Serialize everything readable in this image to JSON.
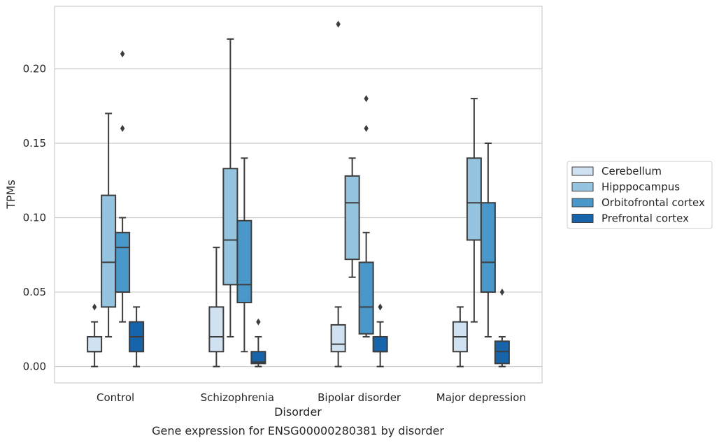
{
  "chart_data": {
    "type": "boxplot",
    "title": "Gene expression for ENSG00000280381 by disorder",
    "xlabel": "Disorder",
    "ylabel": "TPMs",
    "ylim": [
      -0.011,
      0.242
    ],
    "yticks": [
      0.0,
      0.05,
      0.1,
      0.15,
      0.2
    ],
    "ytick_labels": [
      "0.00",
      "0.05",
      "0.10",
      "0.15",
      "0.20"
    ],
    "grid": "horizontal",
    "legend_position": "right",
    "categories": [
      "Control",
      "Schizophrenia",
      "Bipolar disorder",
      "Major depression"
    ],
    "series": [
      {
        "name": "Cerebellum",
        "color": "#d0e1f2",
        "boxes": [
          {
            "whislo": 0.0,
            "q1": 0.01,
            "med": 0.01,
            "q3": 0.02,
            "whishi": 0.03,
            "fliers": [
              0.04
            ]
          },
          {
            "whislo": 0.0,
            "q1": 0.01,
            "med": 0.02,
            "q3": 0.04,
            "whishi": 0.08,
            "fliers": []
          },
          {
            "whislo": 0.0,
            "q1": 0.01,
            "med": 0.015,
            "q3": 0.028,
            "whishi": 0.04,
            "fliers": [
              0.23
            ]
          },
          {
            "whislo": 0.0,
            "q1": 0.01,
            "med": 0.02,
            "q3": 0.03,
            "whishi": 0.04,
            "fliers": []
          }
        ]
      },
      {
        "name": "Hipppocampus",
        "color": "#94c4df",
        "boxes": [
          {
            "whislo": 0.02,
            "q1": 0.04,
            "med": 0.07,
            "q3": 0.115,
            "whishi": 0.17,
            "fliers": []
          },
          {
            "whislo": 0.02,
            "q1": 0.055,
            "med": 0.085,
            "q3": 0.133,
            "whishi": 0.22,
            "fliers": []
          },
          {
            "whislo": 0.06,
            "q1": 0.072,
            "med": 0.11,
            "q3": 0.128,
            "whishi": 0.14,
            "fliers": []
          },
          {
            "whislo": 0.03,
            "q1": 0.085,
            "med": 0.11,
            "q3": 0.14,
            "whishi": 0.18,
            "fliers": []
          }
        ]
      },
      {
        "name": "Orbitofrontal cortex",
        "color": "#4a98c9",
        "boxes": [
          {
            "whislo": 0.03,
            "q1": 0.05,
            "med": 0.08,
            "q3": 0.09,
            "whishi": 0.1,
            "fliers": [
              0.16,
              0.21
            ]
          },
          {
            "whislo": 0.01,
            "q1": 0.043,
            "med": 0.055,
            "q3": 0.098,
            "whishi": 0.14,
            "fliers": []
          },
          {
            "whislo": 0.02,
            "q1": 0.022,
            "med": 0.04,
            "q3": 0.07,
            "whishi": 0.09,
            "fliers": [
              0.16,
              0.18
            ]
          },
          {
            "whislo": 0.02,
            "q1": 0.05,
            "med": 0.07,
            "q3": 0.11,
            "whishi": 0.15,
            "fliers": []
          }
        ]
      },
      {
        "name": "Prefrontal cortex",
        "color": "#1764ab",
        "boxes": [
          {
            "whislo": 0.0,
            "q1": 0.01,
            "med": 0.02,
            "q3": 0.03,
            "whishi": 0.04,
            "fliers": []
          },
          {
            "whislo": 0.0,
            "q1": 0.002,
            "med": 0.003,
            "q3": 0.01,
            "whishi": 0.02,
            "fliers": [
              0.03
            ]
          },
          {
            "whislo": 0.0,
            "q1": 0.01,
            "med": 0.01,
            "q3": 0.02,
            "whishi": 0.03,
            "fliers": [
              0.04
            ]
          },
          {
            "whislo": 0.0,
            "q1": 0.002,
            "med": 0.01,
            "q3": 0.017,
            "whishi": 0.02,
            "fliers": [
              0.05
            ]
          }
        ]
      }
    ]
  }
}
